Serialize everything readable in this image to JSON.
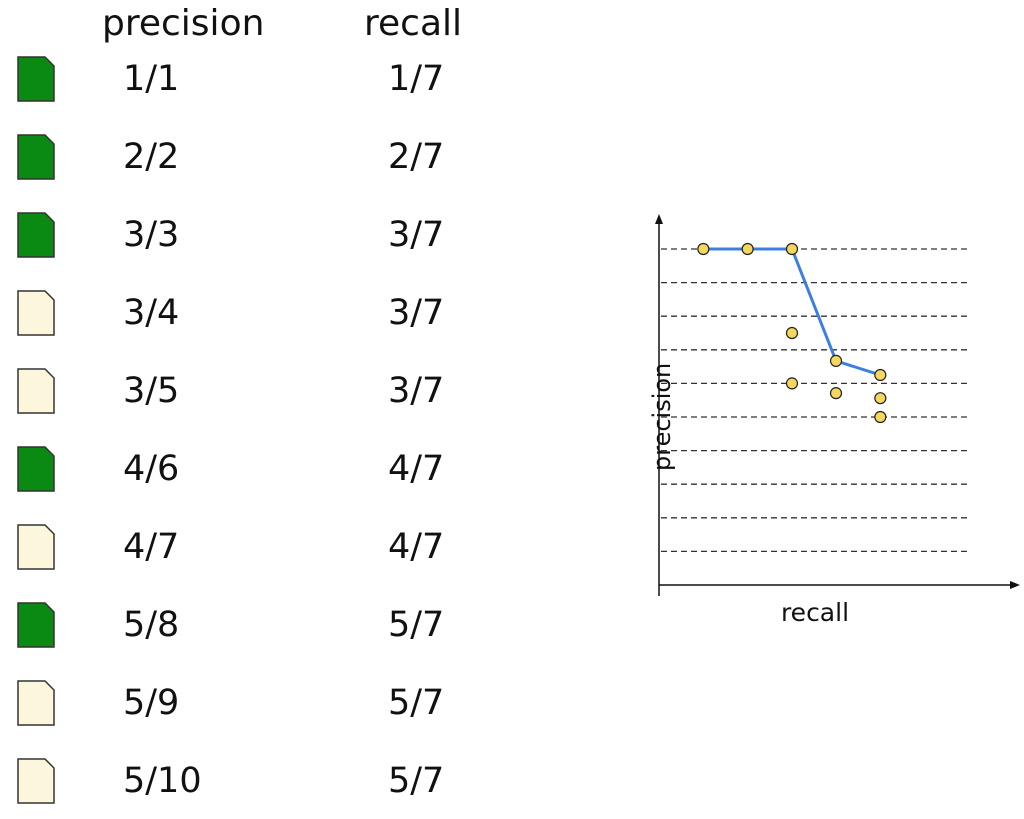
{
  "table": {
    "headers": {
      "precision": "precision",
      "recall": "recall"
    },
    "rows": [
      {
        "relevant": true,
        "precision": "1/1",
        "recall": "1/7"
      },
      {
        "relevant": true,
        "precision": "2/2",
        "recall": "2/7"
      },
      {
        "relevant": true,
        "precision": "3/3",
        "recall": "3/7"
      },
      {
        "relevant": false,
        "precision": "3/4",
        "recall": "3/7"
      },
      {
        "relevant": false,
        "precision": "3/5",
        "recall": "3/7"
      },
      {
        "relevant": true,
        "precision": "4/6",
        "recall": "4/7"
      },
      {
        "relevant": false,
        "precision": "4/7",
        "recall": "4/7"
      },
      {
        "relevant": true,
        "precision": "5/8",
        "recall": "5/7"
      },
      {
        "relevant": false,
        "precision": "5/9",
        "recall": "5/7"
      },
      {
        "relevant": false,
        "precision": "5/10",
        "recall": "5/7"
      }
    ]
  },
  "colors": {
    "relevant_doc": "#0a8a12",
    "nonrelevant_doc": "#fcf7dc",
    "doc_border": "#333333",
    "point_fill": "#f4d75c",
    "curve": "#3d7fe0"
  },
  "chart_data": {
    "type": "line",
    "xlabel": "recall",
    "ylabel": "precision",
    "xlim": [
      0,
      1
    ],
    "ylim": [
      0,
      1
    ],
    "grid": "horizontal-dashed",
    "gridlines_y": [
      0.1,
      0.2,
      0.3,
      0.4,
      0.5,
      0.6,
      0.7,
      0.8,
      0.9,
      1.0
    ],
    "points": [
      {
        "x": 0.143,
        "y": 1.0
      },
      {
        "x": 0.286,
        "y": 1.0
      },
      {
        "x": 0.429,
        "y": 1.0
      },
      {
        "x": 0.429,
        "y": 0.75
      },
      {
        "x": 0.429,
        "y": 0.6
      },
      {
        "x": 0.571,
        "y": 0.667
      },
      {
        "x": 0.571,
        "y": 0.571
      },
      {
        "x": 0.714,
        "y": 0.625
      },
      {
        "x": 0.714,
        "y": 0.556
      },
      {
        "x": 0.714,
        "y": 0.5
      }
    ],
    "series": [
      {
        "x": [
          0.143,
          0.286,
          0.429,
          0.571,
          0.714
        ],
        "y": [
          1.0,
          1.0,
          1.0,
          0.667,
          0.625
        ]
      }
    ]
  }
}
